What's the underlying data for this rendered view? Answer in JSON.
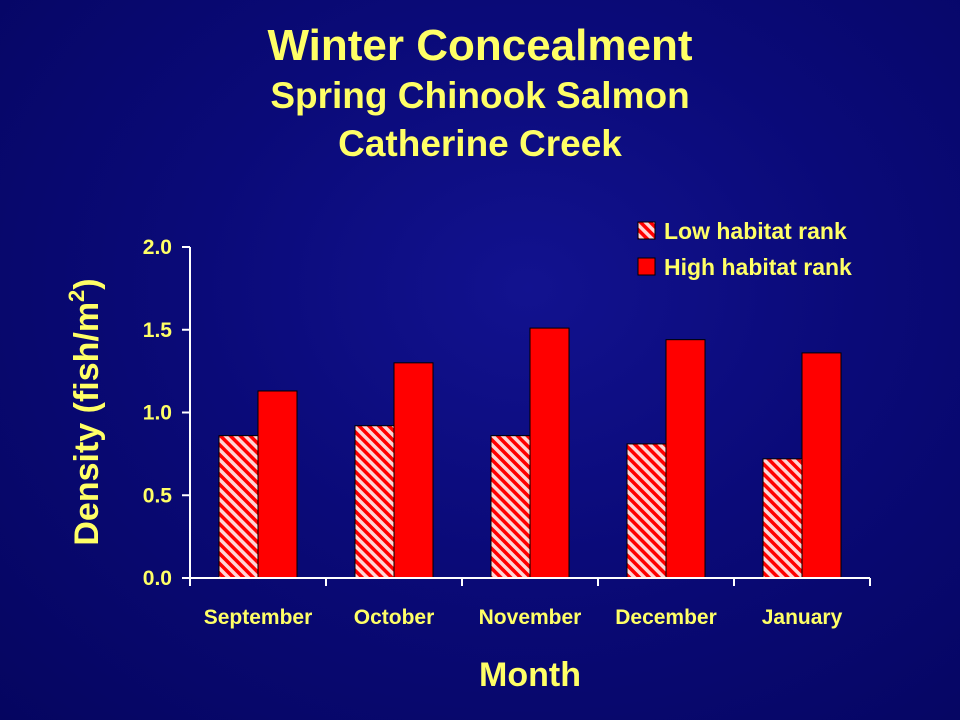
{
  "chart_data": {
    "type": "bar",
    "title": "Winter Concealment",
    "subtitle": [
      "Spring Chinook Salmon",
      "Catherine Creek"
    ],
    "xlabel": "Month",
    "ylabel": "Density (fish/m",
    "ylabel_superscript": "2",
    "ylabel_suffix": ")",
    "categories": [
      "September",
      "October",
      "November",
      "December",
      "January"
    ],
    "series": [
      {
        "name": "Low habitat rank",
        "values": [
          0.86,
          0.92,
          0.86,
          0.81,
          0.72
        ],
        "color": "#ff0000",
        "pattern": "diagonal-hatch"
      },
      {
        "name": "High habitat rank",
        "values": [
          1.13,
          1.3,
          1.51,
          1.44,
          1.36
        ],
        "color": "#ff0000",
        "pattern": "solid"
      }
    ],
    "ylim": [
      0,
      2.0
    ],
    "yticks": [
      "0.0",
      "0.5",
      "1.0",
      "1.5",
      "2.0"
    ],
    "grid": false,
    "legend_position": "top-right"
  },
  "colors": {
    "background": "#0a0a78",
    "text": "#ffff66",
    "bar": "#ff0000",
    "hatch_light": "#ffcccc",
    "axis": "#ffffff"
  }
}
